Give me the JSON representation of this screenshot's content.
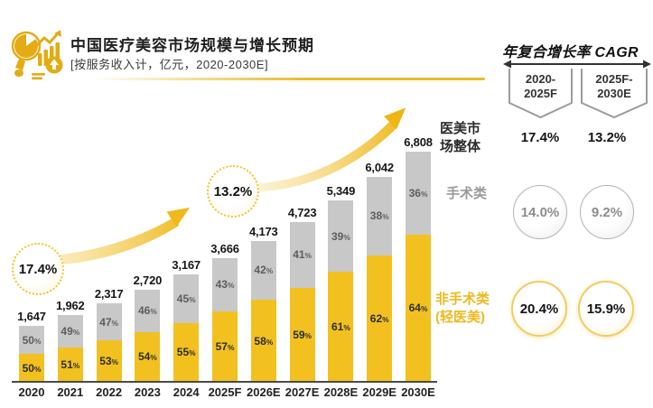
{
  "header": {
    "title": "中国医疗美容市场规模与增长预期",
    "subtitle": "[按服务收入计，亿元，2020-2030E]",
    "logo_icon": "analytics-magnifier-chart"
  },
  "chart_data": {
    "type": "bar",
    "stacked": true,
    "unit": "亿元",
    "title": "中国医疗美容市场规模与增长预期",
    "subtitle": "[按服务收入计，亿元，2020-2030E]",
    "categories": [
      "2020",
      "2021",
      "2022",
      "2023",
      "2024",
      "2025F",
      "2026E",
      "2027E",
      "2028E",
      "2029E",
      "2030E"
    ],
    "totals": [
      1647,
      1962,
      2317,
      2720,
      3167,
      3666,
      4173,
      4723,
      5349,
      6042,
      6808
    ],
    "total_labels": [
      "1,647",
      "1,962",
      "2,317",
      "2,720",
      "3,167",
      "3,666",
      "4,173",
      "4,723",
      "5,349",
      "6,042",
      "6,808"
    ],
    "series": [
      {
        "name": "非手术类(轻医美)",
        "color": "#F2C120",
        "position": "bottom",
        "pct": [
          50,
          51,
          53,
          54,
          55,
          57,
          58,
          59,
          61,
          62,
          64
        ]
      },
      {
        "name": "手术类",
        "color": "#C8C8C8",
        "position": "top",
        "pct": [
          50,
          49,
          47,
          46,
          45,
          43,
          42,
          41,
          39,
          38,
          36
        ]
      }
    ],
    "annotations": [
      {
        "text": "17.4%",
        "style": "dotted-circle",
        "meaning": "CAGR 2020-2025F"
      },
      {
        "text": "13.2%",
        "style": "dotted-circle",
        "meaning": "CAGR 2025F-2030E"
      }
    ],
    "ylim": [
      0,
      6808
    ],
    "grid": false,
    "legend_position": "right-of-bars"
  },
  "chart_labels": {
    "overall_line1": "医美市",
    "overall_line2": "场整体",
    "surgical": "手术类",
    "nonsurgical_line1": "非手术类",
    "nonsurgical_line2": "(轻医美)"
  },
  "cagr_panel": {
    "title": "年复合增长率 CAGR",
    "periods": [
      {
        "line1": "2020-",
        "line2": "2025F"
      },
      {
        "line1": "2025F-",
        "line2": "2030E"
      }
    ],
    "rows": [
      {
        "label": "医美市场整体",
        "values": [
          "17.4%",
          "13.2%"
        ]
      },
      {
        "label": "手术类",
        "values": [
          "14.0%",
          "9.2%"
        ]
      },
      {
        "label": "非手术类(轻医美)",
        "values": [
          "20.4%",
          "15.9%"
        ]
      }
    ]
  },
  "colors": {
    "accent_gold": "#F2C120",
    "bar_gray": "#C8C8C8",
    "logo_gold": "#E3AC15",
    "divider_gold": "#E7BC25",
    "text_dark": "#1f1f1f",
    "text_gray": "#9a9a9a"
  }
}
